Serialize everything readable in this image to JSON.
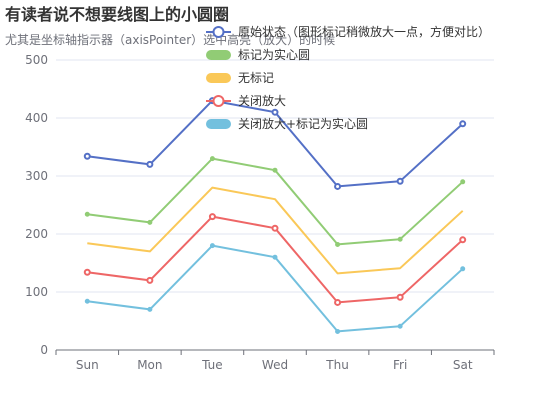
{
  "chart_data": {
    "type": "line",
    "title": "有读者说不想要线图上的小圆圈",
    "subtitle": "尤其是坐标轴指示器（axisPointer）选中高亮（放大）的时候",
    "categories": [
      "Sun",
      "Mon",
      "Tue",
      "Wed",
      "Thu",
      "Fri",
      "Sat"
    ],
    "ylim": [
      0,
      500
    ],
    "yticks": [
      "0",
      "100",
      "200",
      "300",
      "400",
      "500"
    ],
    "grid": "horizontal",
    "legend_position": "top-center",
    "series": [
      {
        "name": "原始状态（图形标记稍微放大一点，方便对比）",
        "values": [
          334,
          320,
          430,
          410,
          282,
          291,
          390
        ],
        "color": "#5470c6",
        "marker": "hollow-circle"
      },
      {
        "name": "标记为实心圆",
        "values": [
          234,
          220,
          330,
          310,
          182,
          191,
          290
        ],
        "color": "#91cc75",
        "marker": "filled-circle"
      },
      {
        "name": "无标记",
        "values": [
          184,
          170,
          280,
          260,
          132,
          141,
          240
        ],
        "color": "#fac858",
        "marker": "none"
      },
      {
        "name": "关闭放大",
        "values": [
          134,
          120,
          230,
          210,
          82,
          91,
          190
        ],
        "color": "#ee6666",
        "marker": "hollow-circle"
      },
      {
        "name": "关闭放大+标记为实心圆",
        "values": [
          84,
          70,
          180,
          160,
          32,
          41,
          140
        ],
        "color": "#73c0de",
        "marker": "filled-circle"
      }
    ]
  }
}
